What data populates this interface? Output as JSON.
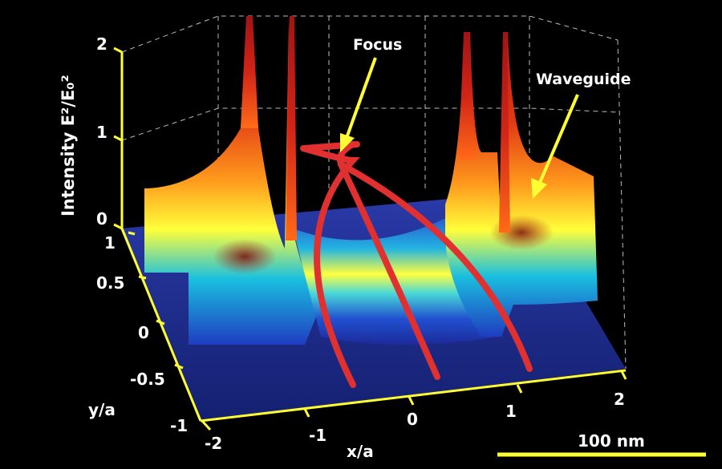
{
  "chart_data": {
    "type": "surface",
    "title": "",
    "zlabel": "Intensity E²/E₀²",
    "xlabel": "x/a",
    "ylabel": "y/a",
    "x_ticks": [
      "-2",
      "-1",
      "0",
      "1",
      "2"
    ],
    "y_ticks": [
      "1",
      "0.5",
      "0",
      "-0.5",
      "-1"
    ],
    "z_ticks": [
      "0",
      "1",
      "2"
    ],
    "xlim": [
      -2,
      2
    ],
    "ylim": [
      -1,
      1
    ],
    "zlim": [
      0,
      2
    ],
    "grid": true,
    "annotations": [
      {
        "text": "Focus"
      },
      {
        "text": "Waveguide"
      }
    ],
    "scale_bar": {
      "label": "100 nm",
      "color": "#ffff33"
    },
    "colormap": [
      "#1a2a9a",
      "#1f66e0",
      "#19c8e0",
      "#7bd96b",
      "#ffff3a",
      "#ffae1c",
      "#ff5a10",
      "#c01818"
    ],
    "axis_color": "#ffff33",
    "ray_color": "#e03030"
  }
}
